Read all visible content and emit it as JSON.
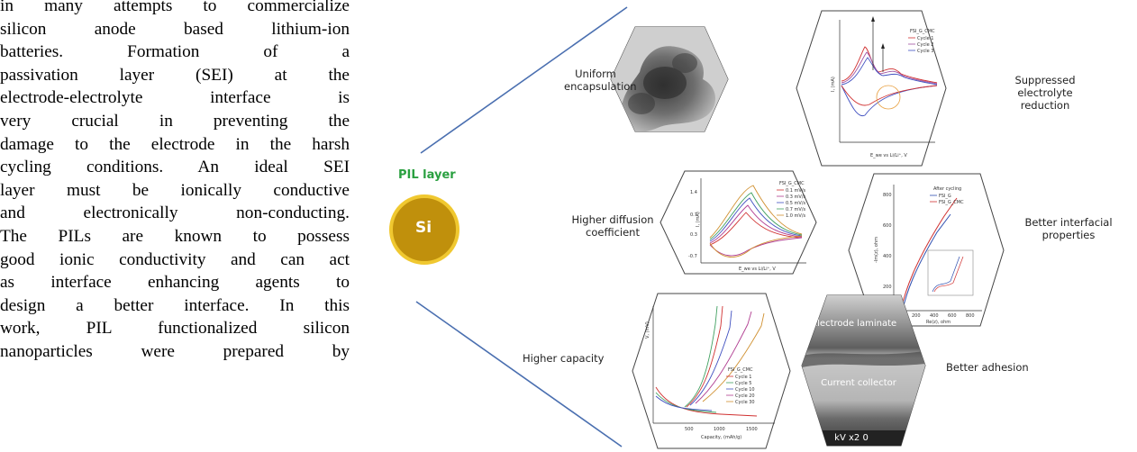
{
  "abstract": {
    "lines": [
      "in many attempts to commercialize",
      "silicon anode based lithium-ion",
      "batteries.   Formation   of   a",
      "passivation layer (SEI) at the",
      "electrode-electrolyte interface is",
      "very crucial in preventing the",
      "damage to the electrode in the harsh",
      "cycling conditions. An ideal SEI",
      "layer must be ionically conductive",
      "and electronically non-conducting.",
      "The PILs are known to possess",
      "good ionic conductivity and can act",
      "as interface enhancing agents to",
      "design a better interface. In this",
      "work, PIL functionalized silicon",
      "nanoparticles were prepared by"
    ]
  },
  "figure": {
    "pil_label": "PIL layer",
    "si_label": "Si",
    "captions": {
      "uniform": [
        "Uniform",
        "encapsulation"
      ],
      "suppressed": [
        "Suppressed",
        "electrolyte",
        "reduction"
      ],
      "diffusion": [
        "Higher diffusion",
        "coefficient"
      ],
      "interfacial": [
        "Better interfacial",
        "properties"
      ],
      "capacity": "Higher capacity",
      "adhesion": "Better adhesion"
    },
    "cv_panel": {
      "legend_title": "FSI_G_CMC",
      "legend": [
        "Cycle 1",
        "Cycle 2",
        "Cycle 3"
      ],
      "ylabel": "I, (mA)",
      "xlabel": "E_we vs Li/Li⁺, V"
    },
    "rate_panel": {
      "legend_title": "FSI_G_CMC",
      "legend": [
        "0.1 mV/s",
        "0.3 mV/s",
        "0.5 mV/s",
        "0.7 mV/s",
        "1.0 mV/s"
      ],
      "ylabel": "I, (mA)",
      "xlabel": "E_we vs Li/Li⁺, V",
      "yticks": [
        "1.4",
        "0.7",
        "0.3",
        "-0.7"
      ]
    },
    "eis_panel": {
      "legend_title": "After cycling",
      "legend": [
        "FSI_G",
        "FSI_G_CMC"
      ],
      "ylabel": "-Im(z), ohm",
      "xlabel": "Re(z), ohm",
      "yticks": [
        "800",
        "600",
        "400",
        "200"
      ],
      "xticks": [
        "200",
        "400",
        "600",
        "800"
      ]
    },
    "capacity_panel": {
      "legend_title": "FSI_G_CMC",
      "legend": [
        "Cycle 1",
        "Cycle 5",
        "Cycle 10",
        "Cycle 20",
        "Cycle 30"
      ],
      "ylabel": "V, (mV)",
      "xlabel": "Capacity, (mAh/g)",
      "xticks": [
        "500",
        "1000",
        "1500"
      ]
    },
    "sem_panel": {
      "top_label": "Electrode laminate",
      "bottom_label": "Current collector",
      "footer": "kV  x2  0"
    },
    "colors": {
      "pil_green": "#2aa040",
      "si_fill": "#c0900c",
      "si_ring": "#f0c830",
      "connector": "#4a6fb0"
    }
  }
}
